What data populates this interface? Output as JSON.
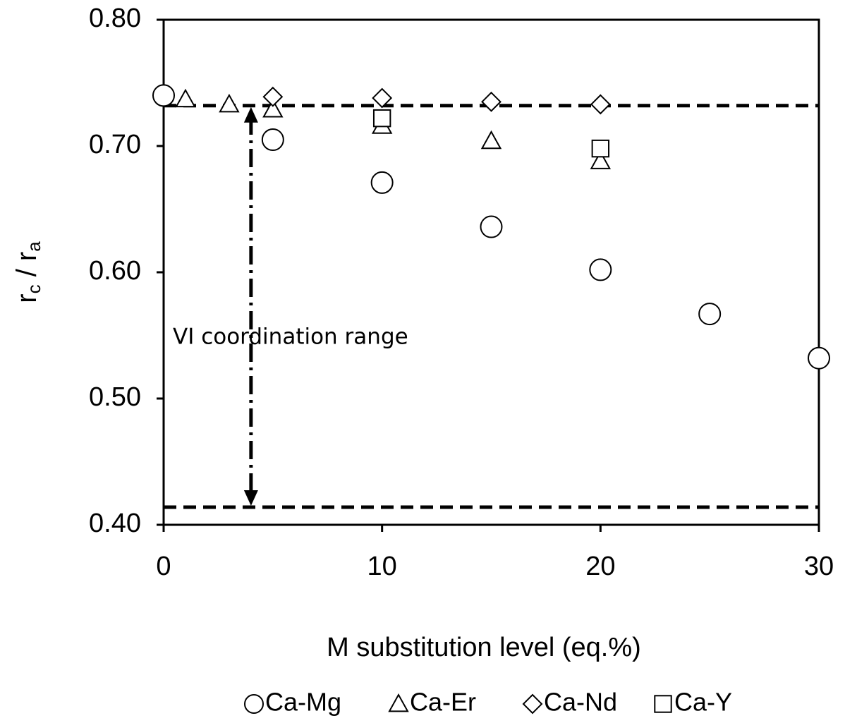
{
  "chart_data": {
    "type": "scatter",
    "x_label": "M substitution level (eq.%)",
    "y_label": [
      "r",
      "c",
      " / r",
      "a"
    ],
    "xlim": [
      0,
      30
    ],
    "xticks": [
      0,
      10,
      20,
      30
    ],
    "ylim": [
      0.4,
      0.8
    ],
    "yticks": [
      {
        "value": 0.4,
        "label": "0.40"
      },
      {
        "value": 0.5,
        "label": "0.50"
      },
      {
        "value": 0.6,
        "label": "0.60"
      },
      {
        "value": 0.7,
        "label": "0.70"
      },
      {
        "value": 0.8,
        "label": "0.80"
      }
    ],
    "grid": false,
    "legend": "bottom",
    "series": [
      {
        "name": "Ca-Mg",
        "marker": "circle",
        "color": "#000000",
        "x": [
          0,
          5,
          10,
          15,
          20,
          25,
          30
        ],
        "values": [
          0.74,
          0.705,
          0.671,
          0.636,
          0.602,
          0.567,
          0.532
        ]
      },
      {
        "name": "Ca-Er",
        "marker": "triangle",
        "color": "#000000",
        "x": [
          1,
          3,
          5,
          10,
          15,
          20
        ],
        "values": [
          0.737,
          0.733,
          0.729,
          0.716,
          0.704,
          0.688
        ]
      },
      {
        "name": "Ca-Nd",
        "marker": "diamond",
        "color": "#000000",
        "x": [
          5,
          10,
          15,
          20
        ],
        "values": [
          0.739,
          0.738,
          0.735,
          0.733
        ]
      },
      {
        "name": "Ca-Y",
        "marker": "square",
        "color": "#000000",
        "x": [
          10,
          20
        ],
        "values": [
          0.722,
          0.698
        ]
      }
    ],
    "reference_lines": [
      0.732,
      0.414
    ],
    "reference_arrow": {
      "x": 4,
      "from": 0.414,
      "to": 0.732
    },
    "annotation": "VI coordination range"
  }
}
